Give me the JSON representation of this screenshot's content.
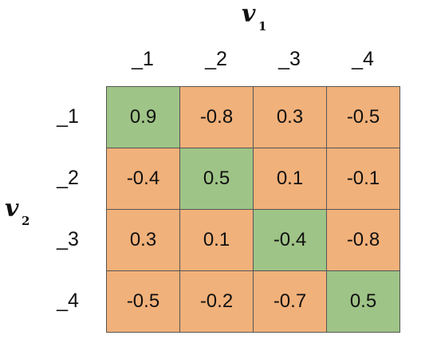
{
  "column_label": {
    "symbol": "v",
    "subscript": "1"
  },
  "row_label": {
    "symbol": "v",
    "subscript": "2"
  },
  "columns": [
    "_1",
    "_2",
    "_3",
    "_4"
  ],
  "rows": [
    "_1",
    "_2",
    "_3",
    "_4"
  ],
  "cells": [
    [
      "0.9",
      "-0.8",
      "0.3",
      "-0.5"
    ],
    [
      "-0.4",
      "0.5",
      "0.1",
      "-0.1"
    ],
    [
      "0.3",
      "0.1",
      "-0.4",
      "-0.8"
    ],
    [
      "-0.5",
      "-0.2",
      "-0.7",
      "0.5"
    ]
  ],
  "cell_color": "#f1b17a",
  "diagonal_color": "#9fc487"
}
